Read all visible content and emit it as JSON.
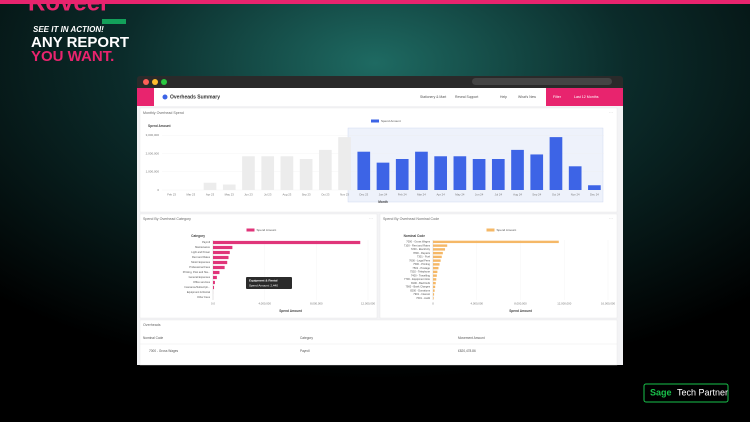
{
  "promo": {
    "brand": "Roveer",
    "kicker": "SEE IT IN ACTION!",
    "line1": "ANY REPORT",
    "line2": "YOU WANT."
  },
  "partner": {
    "brand": "Sage",
    "label": "Tech Partner"
  },
  "app": {
    "title": "Overheads Summary",
    "nav": [
      "Stationery & Mart",
      "Reveal Support",
      "Help",
      "What's New"
    ],
    "filter": "Filter",
    "period": "Last 12 Months"
  },
  "chart_data": [
    {
      "type": "bar",
      "title": "Monthly Overhead Spend",
      "y_label": "Spend Amount",
      "x_label": "Month",
      "legend": "Spend Amount",
      "color": "#3d64e6",
      "categories": [
        "Feb 23",
        "Mar 23",
        "Apr 23",
        "May 23",
        "Jun 23",
        "Jul 23",
        "Aug 23",
        "Sep 23",
        "Oct 23",
        "Nov 23",
        "Dec 23",
        "Jan 24",
        "Feb 24",
        "Mar 24",
        "Apr 24",
        "May 24",
        "Jun 24",
        "Jul 24",
        "Aug 24",
        "Sep 24",
        "Oct 24",
        "Nov 24",
        "Dec 24"
      ],
      "values": [
        0,
        0,
        400000,
        300000,
        1850000,
        1850000,
        1850000,
        1700000,
        2200000,
        2900000,
        2100000,
        1500000,
        1700000,
        2100000,
        1850000,
        1850000,
        1700000,
        1700000,
        2200000,
        1950000,
        2900000,
        1300000,
        260000
      ],
      "colors": [
        "#ececec",
        "#ececec",
        "#ececec",
        "#ececec",
        "#ececec",
        "#ececec",
        "#ececec",
        "#ececec",
        "#ececec",
        "#ececec",
        "#3d64e6",
        "#3d64e6",
        "#3d64e6",
        "#3d64e6",
        "#3d64e6",
        "#3d64e6",
        "#3d64e6",
        "#3d64e6",
        "#3d64e6",
        "#3d64e6",
        "#3d64e6",
        "#3d64e6",
        "#3d64e6"
      ],
      "ylim": [
        0,
        3400000
      ],
      "yticks": [
        0,
        {
          "value": 1000000,
          "label": "1,000,000"
        },
        {
          "value": 2000000,
          "label": "2,000,000"
        },
        {
          "value": 3000000,
          "label": "3,000,000"
        }
      ]
    },
    {
      "type": "hbar",
      "title": "Spend By Overhead Category",
      "y_label": "Category",
      "x_label": "Spend Amount",
      "legend": "Spend Amount",
      "color": "#e0357a",
      "categories": [
        "Payroll",
        "Maintenance",
        "Light and Power",
        "Rent and Rates",
        "Motor Expenses",
        "Professional Fees",
        "Printing, Post and Sta...",
        "General Expenses",
        "Office services",
        "Insurance/Subscripti...",
        "Equipment & Rental",
        "Other Fees"
      ],
      "values": [
        11400000,
        1500000,
        1300000,
        1200000,
        1100000,
        900000,
        500000,
        300000,
        150000,
        80000,
        2440,
        1000
      ],
      "xlim": [
        0,
        12000000
      ],
      "xticks": [
        {
          "value": 0,
          "label": "0.0"
        },
        {
          "value": 4000000,
          "label": "4,000,000"
        },
        {
          "value": 8000000,
          "label": "8,000,000"
        },
        {
          "value": 12000000,
          "label": "12,000,000"
        }
      ],
      "tooltip": {
        "title": "Equipment & Rental",
        "text": "Spend Amount: 2,440"
      }
    },
    {
      "type": "hbar",
      "title": "Spend By Overhead Nominal Code",
      "y_label": "Nominal Code",
      "x_label": "Spend Amount",
      "legend": "Spend Amount",
      "color": "#f5b867",
      "categories": [
        "7000 - Gross Wages",
        "7100 - Rent and Rates",
        "7200 - Electricity",
        "7800 - Repairs",
        "7301 - Fuel",
        "7600 - Legal Fees",
        "7500 - Printing",
        "7501 - Postage",
        "7502 - Telephone",
        "7400 - Travelling",
        "7700 - Equipment Hire",
        "8100 - Bad Debt",
        "7900 - Bank Charges",
        "8200 - Donations",
        "7901 - Interest",
        "7601 - Audit"
      ],
      "values": [
        11500000,
        1300000,
        1100000,
        900000,
        800000,
        700000,
        600000,
        500000,
        400000,
        350000,
        300000,
        250000,
        200000,
        150000,
        100000,
        60000
      ],
      "xlim": [
        0,
        16000000
      ],
      "xticks": [
        0,
        {
          "value": 4000000,
          "label": "4,000,000"
        },
        {
          "value": 8000000,
          "label": "8,000,000"
        },
        {
          "value": 12000000,
          "label": "12,000,000"
        },
        {
          "value": 16000000,
          "label": "16,000,000"
        }
      ]
    }
  ],
  "table": {
    "title": "Overheads",
    "columns": [
      "Nominal Code",
      "Category",
      "Movement Amount"
    ],
    "rows": [
      [
        "7000 - Gross Wages",
        "Payroll",
        "£820,478.86"
      ]
    ]
  }
}
